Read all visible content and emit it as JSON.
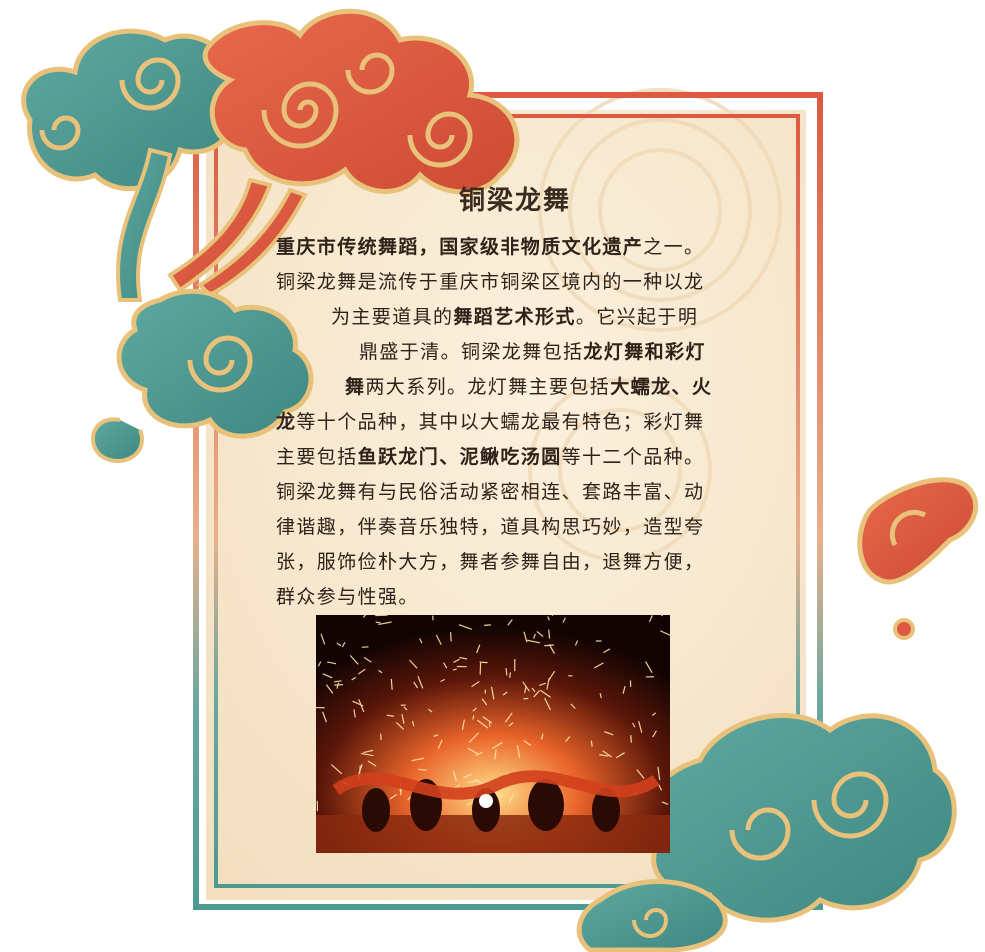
{
  "title": "铜梁龙舞",
  "paragraph": [
    {
      "segments": [
        {
          "t": "重庆市传统舞蹈，国家级非物质文化遗产",
          "b": true
        },
        {
          "t": "之一。",
          "b": false
        }
      ]
    },
    {
      "segments": [
        {
          "t": "铜梁龙舞是流传于重庆市铜梁区境内的一种以龙",
          "b": false
        }
      ]
    },
    {
      "segments": [
        {
          "t": "为主要道具的",
          "b": false
        },
        {
          "t": "舞蹈艺术形式",
          "b": true
        },
        {
          "t": "。它兴起于明",
          "b": false
        }
      ]
    },
    {
      "segments": [
        {
          "t": "鼎盛于清。铜梁龙舞包括",
          "b": false
        },
        {
          "t": "龙灯舞和彩灯",
          "b": true
        }
      ]
    },
    {
      "segments": [
        {
          "t": "舞",
          "b": true
        },
        {
          "t": "两大系列。龙灯舞主要包括",
          "b": false
        },
        {
          "t": "大蠕龙、火",
          "b": true
        }
      ]
    },
    {
      "segments": [
        {
          "t": "龙",
          "b": true
        },
        {
          "t": "等十个品种，其中以大蠕龙最有特色；彩灯舞",
          "b": false
        }
      ]
    },
    {
      "segments": [
        {
          "t": "主要包括",
          "b": false
        },
        {
          "t": "鱼跃龙门、泥鳅吃汤圆",
          "b": true
        },
        {
          "t": "等十二个品种。",
          "b": false
        }
      ]
    },
    {
      "segments": [
        {
          "t": "铜梁龙舞有与民俗活动紧密相连、套路丰富、动",
          "b": false
        }
      ]
    },
    {
      "segments": [
        {
          "t": "律谐趣，伴奏音乐独特，道具构思巧妙，造型夸",
          "b": false
        }
      ]
    },
    {
      "segments": [
        {
          "t": "张，服饰俭朴大方，舞者参舞自由，退舞方便，",
          "b": false
        }
      ]
    },
    {
      "segments": [
        {
          "t": "群众参与性强。",
          "b": false
        }
      ]
    }
  ],
  "colors": {
    "teal": "#4e9a93",
    "red": "#dd5a41",
    "gold": "#e8c17a",
    "paper": "#f9ebd3",
    "text": "#2f2219"
  },
  "decorations": [
    "cloud-top-left-teal",
    "cloud-top-red",
    "cloud-mid-left-teal",
    "cloud-bottom-right-teal",
    "cloud-right-red"
  ]
}
